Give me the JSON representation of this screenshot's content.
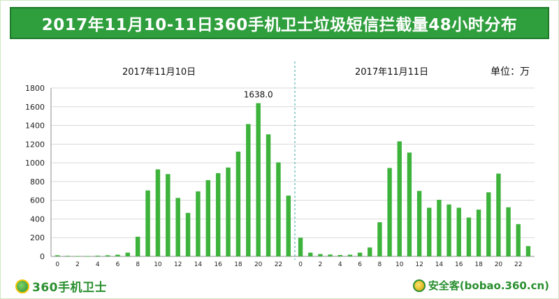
{
  "title": "2017年11月10-11日360手机卫士垃圾短信拦截量48小时分布",
  "unit_label": "单位：万",
  "brand_left": "360手机卫士",
  "brand_right": "安全客(bobao.360.cn)",
  "colors": {
    "bar": "#3db33c",
    "title_bg": "#2f9e3d",
    "divider": "#3aa9a0",
    "grid": "#d9d9d9"
  },
  "chart_data": {
    "type": "bar",
    "ylim": [
      0,
      1800
    ],
    "yticks": [
      0,
      200,
      400,
      600,
      800,
      1000,
      1200,
      1400,
      1600,
      1800
    ],
    "panels": [
      {
        "title": "2017年11月10日",
        "categories": [
          "0",
          "1",
          "2",
          "3",
          "4",
          "5",
          "6",
          "7",
          "8",
          "9",
          "10",
          "11",
          "12",
          "13",
          "14",
          "15",
          "16",
          "17",
          "18",
          "19",
          "20",
          "21",
          "22",
          "23"
        ],
        "tick_labels": [
          "0",
          "",
          "2",
          "",
          "4",
          "",
          "6",
          "",
          "8",
          "",
          "10",
          "",
          "12",
          "",
          "14",
          "",
          "16",
          "",
          "18",
          "",
          "20",
          "",
          "22",
          ""
        ],
        "values": [
          12,
          6,
          4,
          4,
          8,
          12,
          18,
          40,
          210,
          705,
          930,
          880,
          625,
          465,
          695,
          815,
          890,
          950,
          1120,
          1415,
          1638,
          1305,
          1005,
          650
        ],
        "annotation": {
          "index": 20,
          "text": "1638.0"
        }
      },
      {
        "title": "2017年11月11日",
        "categories": [
          "0",
          "1",
          "2",
          "3",
          "4",
          "5",
          "6",
          "7",
          "8",
          "9",
          "10",
          "11",
          "12",
          "13",
          "14",
          "15",
          "16",
          "17",
          "18",
          "19",
          "20",
          "21",
          "22",
          "23"
        ],
        "tick_labels": [
          "0",
          "",
          "2",
          "",
          "4",
          "",
          "6",
          "",
          "8",
          "",
          "10",
          "",
          "12",
          "",
          "14",
          "",
          "16",
          "",
          "18",
          "",
          "20",
          "",
          "22",
          ""
        ],
        "values": [
          200,
          40,
          25,
          20,
          15,
          18,
          40,
          95,
          365,
          945,
          1230,
          1110,
          700,
          520,
          605,
          555,
          520,
          415,
          500,
          685,
          885,
          525,
          345,
          110
        ]
      }
    ]
  }
}
